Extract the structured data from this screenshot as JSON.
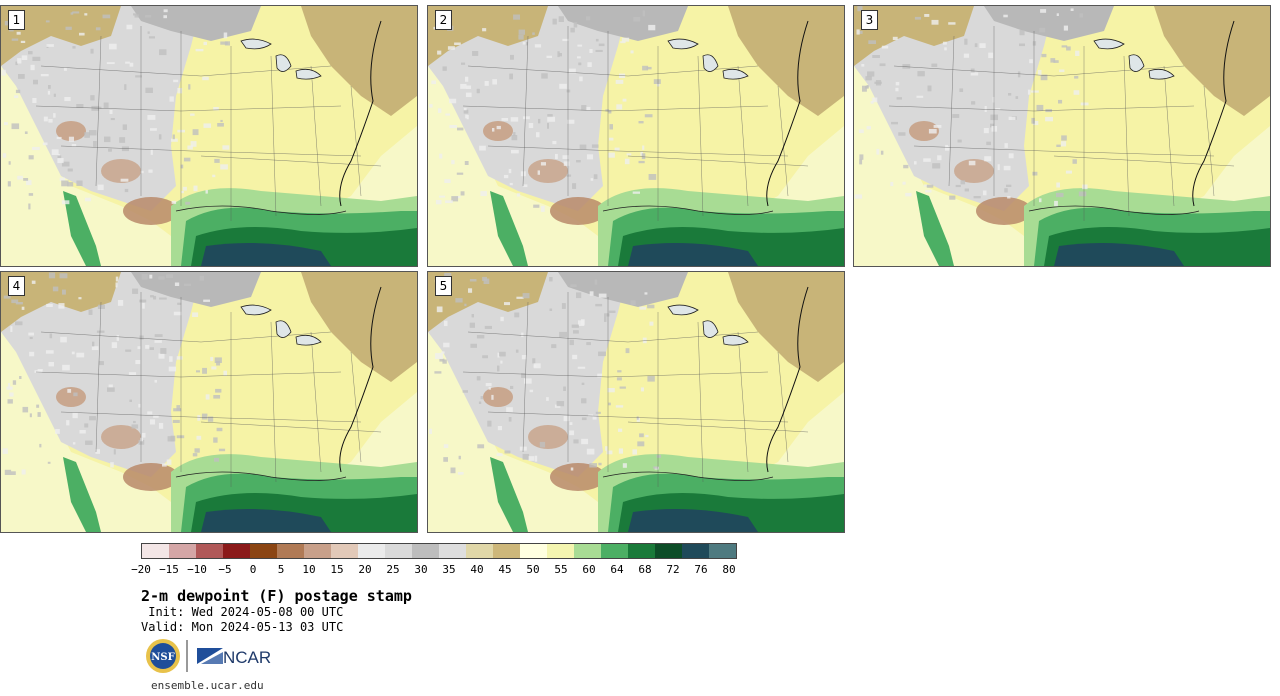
{
  "panels": [
    {
      "label": "1"
    },
    {
      "label": "2"
    },
    {
      "label": "3"
    },
    {
      "label": "4"
    },
    {
      "label": "5"
    }
  ],
  "colorbar": {
    "colors": [
      "#f3e6e6",
      "#d4a6a6",
      "#b05858",
      "#8b1a1a",
      "#8b4513",
      "#b07a55",
      "#c8a08a",
      "#e2c9b8",
      "#ebebeb",
      "#dadada",
      "#bdbdbd",
      "#dedede",
      "#e0d7a8",
      "#cdb77a",
      "#ffffe0",
      "#f4f5b0",
      "#a8dc94",
      "#4caf64",
      "#1a7a3a",
      "#0d4d28",
      "#1f4a5a",
      "#4e7a80"
    ],
    "ticks": [
      "−20",
      "−15",
      "−10",
      "−5",
      "0",
      "5",
      "10",
      "15",
      "20",
      "25",
      "30",
      "35",
      "40",
      "45",
      "50",
      "55",
      "60",
      "64",
      "68",
      "72",
      "76",
      "80"
    ]
  },
  "title": "2-m dewpoint (F) postage stamp",
  "init": " Init: Wed 2024-05-08 00 UTC",
  "valid": "Valid: Mon 2024-05-13 03 UTC",
  "logos": {
    "nsf": "NSF",
    "ncar": "NCAR"
  },
  "site": "ensemble.ucar.edu"
}
